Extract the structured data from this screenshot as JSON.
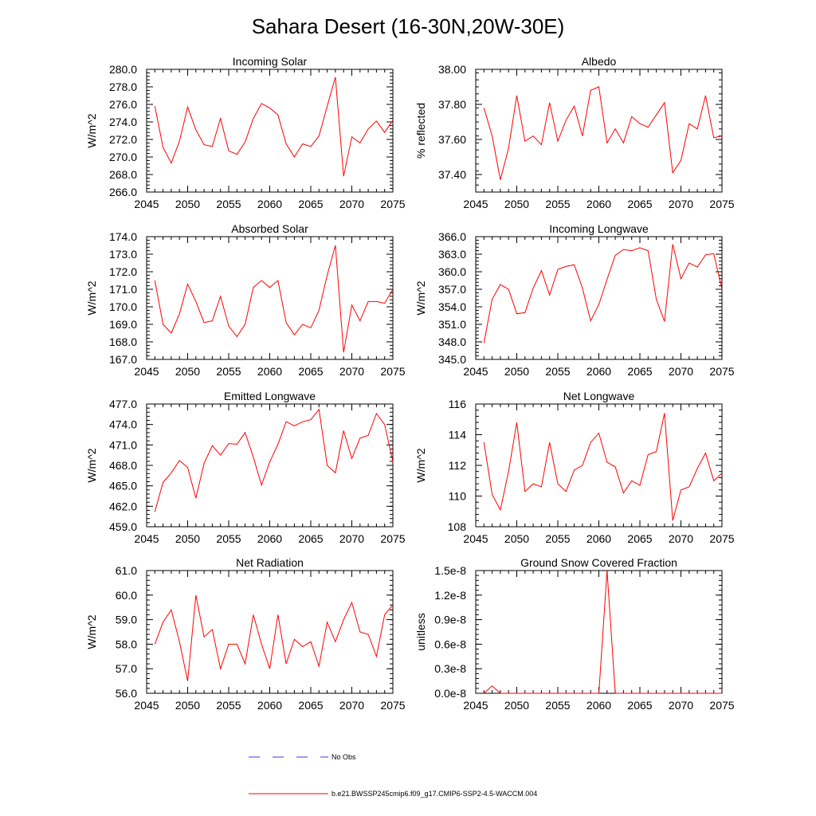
{
  "title": "Sahara Desert (16-30N,20W-30E)",
  "legend": {
    "obs_label": "No Obs",
    "model_label": "b.e21.BWSSP245cmip6.f09_g17.CMIP6-SSP2-4.5-WACCM.004",
    "obs_color": "#3b3bd6",
    "model_color": "#ff0000"
  },
  "chart_data": [
    {
      "type": "line",
      "title": "Incoming Solar",
      "ylabel": "W/m^2",
      "xlim": [
        2045,
        2075
      ],
      "ylim": [
        266,
        280
      ],
      "yticks": [
        "266.0",
        "268.0",
        "270.0",
        "272.0",
        "274.0",
        "276.0",
        "278.0",
        "280.0"
      ],
      "ytick_values": [
        266,
        268,
        270,
        272,
        274,
        276,
        278,
        280
      ],
      "xticks": [
        "2045",
        "2050",
        "2055",
        "2060",
        "2065",
        "2070",
        "2075"
      ],
      "series": [
        {
          "values": [
            275.8,
            271.1,
            269.3,
            271.8,
            275.7,
            273.1,
            271.4,
            271.2,
            274.4,
            270.7,
            270.3,
            271.7,
            274.4,
            276.1,
            275.6,
            274.8,
            271.5,
            270.0,
            271.5,
            271.2,
            272.4,
            275.8,
            279.1,
            267.8,
            272.3,
            271.6,
            273.2,
            274.1,
            272.8,
            274.2
          ]
        }
      ]
    },
    {
      "type": "line",
      "title": "Albedo",
      "ylabel": "% reflected",
      "xlim": [
        2045,
        2075
      ],
      "ylim": [
        37.3,
        38.0
      ],
      "yticks": [
        "37.40",
        "37.60",
        "37.80",
        "38.00"
      ],
      "ytick_values": [
        37.4,
        37.6,
        37.8,
        38.0
      ],
      "xticks": [
        "2045",
        "2050",
        "2055",
        "2060",
        "2065",
        "2070",
        "2075"
      ],
      "series": [
        {
          "values": [
            37.78,
            37.62,
            37.37,
            37.55,
            37.85,
            37.59,
            37.62,
            37.57,
            37.81,
            37.59,
            37.71,
            37.79,
            37.62,
            37.88,
            37.9,
            37.58,
            37.66,
            37.58,
            37.73,
            37.69,
            37.67,
            37.74,
            37.81,
            37.41,
            37.48,
            37.69,
            37.66,
            37.85,
            37.61,
            37.62
          ]
        }
      ]
    },
    {
      "type": "line",
      "title": "Absorbed Solar",
      "ylabel": "W/m^2",
      "xlim": [
        2045,
        2075
      ],
      "ylim": [
        167,
        174
      ],
      "yticks": [
        "167.0",
        "168.0",
        "169.0",
        "170.0",
        "171.0",
        "172.0",
        "173.0",
        "174.0"
      ],
      "ytick_values": [
        167,
        168,
        169,
        170,
        171,
        172,
        173,
        174
      ],
      "xticks": [
        "2045",
        "2050",
        "2055",
        "2060",
        "2065",
        "2070",
        "2075"
      ],
      "series": [
        {
          "values": [
            171.5,
            169.0,
            168.5,
            169.6,
            171.3,
            170.3,
            169.1,
            169.2,
            170.6,
            168.9,
            168.3,
            169.0,
            171.1,
            171.5,
            171.1,
            171.5,
            169.1,
            168.4,
            169.0,
            168.8,
            169.8,
            171.8,
            173.5,
            167.4,
            170.1,
            169.2,
            170.3,
            170.3,
            170.2,
            171.0
          ]
        }
      ]
    },
    {
      "type": "line",
      "title": "Incoming Longwave",
      "ylabel": "W/m^2",
      "xlim": [
        2045,
        2075
      ],
      "ylim": [
        345,
        366
      ],
      "yticks": [
        "345.0",
        "348.0",
        "351.0",
        "354.0",
        "357.0",
        "360.0",
        "363.0",
        "366.0"
      ],
      "ytick_values": [
        345,
        348,
        351,
        354,
        357,
        360,
        363,
        366
      ],
      "xticks": [
        "2045",
        "2050",
        "2055",
        "2060",
        "2065",
        "2070",
        "2075"
      ],
      "series": [
        {
          "values": [
            347.8,
            355.3,
            357.8,
            357.0,
            352.8,
            353.0,
            357.2,
            360.2,
            356.0,
            360.4,
            360.9,
            361.2,
            357.2,
            351.6,
            354.4,
            358.7,
            362.8,
            363.8,
            363.6,
            364.1,
            363.6,
            355.3,
            351.5,
            364.7,
            358.8,
            361.5,
            360.8,
            362.9,
            363.1,
            357.0
          ]
        }
      ]
    },
    {
      "type": "line",
      "title": "Emitted Longwave",
      "ylabel": "W/m^2",
      "xlim": [
        2045,
        2075
      ],
      "ylim": [
        459,
        477
      ],
      "yticks": [
        "459.0",
        "462.0",
        "465.0",
        "468.0",
        "471.0",
        "474.0",
        "477.0"
      ],
      "ytick_values": [
        459,
        462,
        465,
        468,
        471,
        474,
        477
      ],
      "xticks": [
        "2045",
        "2050",
        "2055",
        "2060",
        "2065",
        "2070",
        "2075"
      ],
      "series": [
        {
          "values": [
            461.2,
            465.5,
            466.9,
            468.7,
            467.7,
            463.2,
            468.3,
            470.9,
            469.5,
            471.2,
            471.1,
            472.8,
            469.2,
            465.1,
            468.5,
            471.1,
            474.4,
            473.8,
            474.4,
            474.7,
            476.2,
            468.0,
            466.9,
            473.1,
            469.0,
            472.0,
            472.4,
            475.6,
            474.0,
            468.5
          ]
        }
      ]
    },
    {
      "type": "line",
      "title": "Net Longwave",
      "ylabel": "W/m^2",
      "xlim": [
        2045,
        2075
      ],
      "ylim": [
        108,
        116
      ],
      "yticks": [
        "108",
        "110",
        "112",
        "114",
        "116"
      ],
      "ytick_values": [
        108,
        110,
        112,
        114,
        116
      ],
      "xticks": [
        "2045",
        "2050",
        "2055",
        "2060",
        "2065",
        "2070",
        "2075"
      ],
      "series": [
        {
          "values": [
            113.5,
            110.1,
            109.1,
            111.6,
            114.8,
            110.3,
            110.8,
            110.6,
            113.5,
            110.8,
            110.3,
            111.7,
            112.0,
            113.5,
            114.1,
            112.2,
            111.9,
            110.2,
            111.0,
            110.7,
            112.7,
            112.9,
            115.4,
            108.4,
            110.4,
            110.6,
            111.8,
            112.8,
            111.0,
            111.5
          ]
        }
      ]
    },
    {
      "type": "line",
      "title": "Net Radiation",
      "ylabel": "W/m^2",
      "xlim": [
        2045,
        2075
      ],
      "ylim": [
        56,
        61
      ],
      "yticks": [
        "56.0",
        "57.0",
        "58.0",
        "59.0",
        "60.0",
        "61.0"
      ],
      "ytick_values": [
        56,
        57,
        58,
        59,
        60,
        61
      ],
      "xticks": [
        "2045",
        "2050",
        "2055",
        "2060",
        "2065",
        "2070",
        "2075"
      ],
      "series": [
        {
          "values": [
            58.0,
            58.9,
            59.4,
            58.1,
            56.5,
            60.0,
            58.3,
            58.6,
            57.0,
            58.0,
            58.0,
            57.2,
            59.2,
            58.0,
            57.0,
            59.2,
            57.2,
            58.2,
            57.9,
            58.1,
            57.1,
            58.9,
            58.1,
            59.0,
            59.7,
            58.5,
            58.4,
            57.5,
            59.2,
            59.6
          ]
        }
      ]
    },
    {
      "type": "line",
      "title": "Ground Snow Covered Fraction",
      "ylabel": "unitless",
      "xlim": [
        2045,
        2075
      ],
      "ylim": [
        0,
        1.5e-08
      ],
      "yticks": [
        "0.0e-8",
        "0.3e-8",
        "0.6e-8",
        "0.9e-8",
        "1.2e-8",
        "1.5e-8"
      ],
      "ytick_values": [
        0,
        3e-09,
        6e-09,
        9e-09,
        1.2e-08,
        1.5e-08
      ],
      "xticks": [
        "2045",
        "2050",
        "2055",
        "2060",
        "2065",
        "2070",
        "2075"
      ],
      "series": [
        {
          "values": [
            0,
            9e-10,
            0,
            0,
            0,
            0,
            0,
            0,
            0,
            0,
            0,
            0,
            0,
            0,
            0,
            1.5e-08,
            0,
            0,
            0,
            0,
            0,
            0,
            0,
            0,
            0,
            0,
            0,
            0,
            0,
            0
          ]
        }
      ]
    }
  ]
}
